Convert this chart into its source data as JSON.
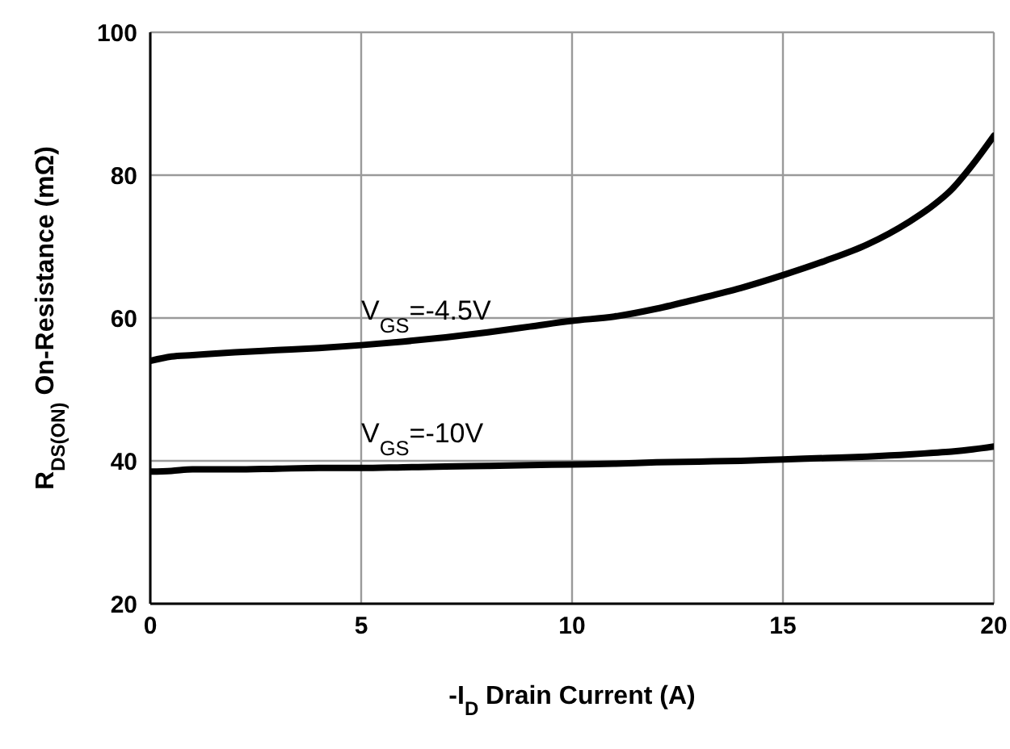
{
  "chart_data": {
    "type": "line",
    "xlabel": "-I$_{D}$ Drain Current (A)",
    "ylabel": "R$_{DS(ON)}$ On-Resistance (mΩ)",
    "x": [
      0,
      0.5,
      1,
      2,
      3,
      4,
      5,
      6,
      7,
      8,
      9,
      10,
      11,
      12,
      13,
      14,
      15,
      16,
      17,
      18,
      18.5,
      19,
      19.5,
      20
    ],
    "series": [
      {
        "name": "V$_{GS}$=-4.5V",
        "color": "#000000",
        "values": [
          54,
          54.6,
          54.8,
          55.2,
          55.5,
          55.8,
          56.2,
          56.7,
          57.3,
          58,
          58.8,
          59.6,
          60.2,
          61.3,
          62.7,
          64.2,
          66,
          68,
          70.3,
          73.5,
          75.5,
          78,
          81.5,
          85.5
        ]
      },
      {
        "name": "V$_{GS}$=-10V",
        "color": "#000000",
        "values": [
          38.5,
          38.6,
          38.8,
          38.8,
          38.9,
          39,
          39,
          39.1,
          39.2,
          39.3,
          39.4,
          39.5,
          39.6,
          39.8,
          39.9,
          40,
          40.2,
          40.4,
          40.6,
          40.9,
          41.1,
          41.3,
          41.6,
          42
        ]
      }
    ],
    "xlim": [
      0,
      20
    ],
    "xticks": [
      0,
      5,
      10,
      15,
      20
    ],
    "ylim": [
      20,
      100
    ],
    "yticks": [
      20,
      40,
      60,
      80,
      100
    ],
    "grid": true,
    "legend": false,
    "marker": "none",
    "line_style": "solid"
  }
}
